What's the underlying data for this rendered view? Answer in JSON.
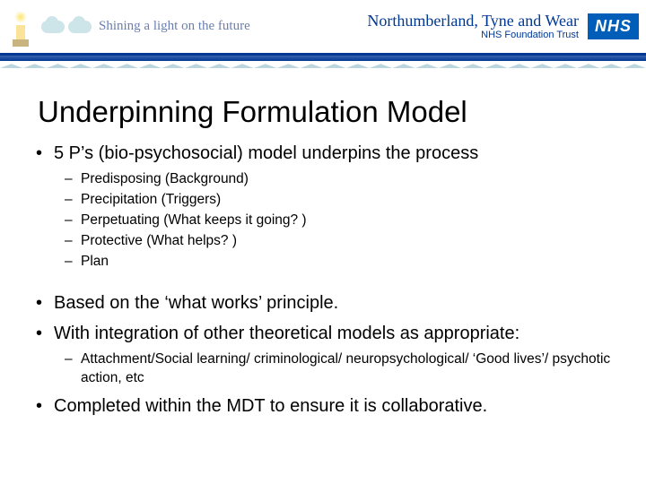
{
  "header": {
    "tagline": "Shining a light on the future",
    "trust_line1": "Northumberland, Tyne and Wear",
    "trust_line2": "NHS Foundation Trust",
    "nhs": "NHS"
  },
  "title": "Underpinning Formulation Model",
  "bullets": [
    {
      "text": "5 P’s (bio-psychosocial) model underpins the process",
      "sub": [
        "Predisposing (Background)",
        "Precipitation (Triggers)",
        "Perpetuating (What keeps it going? )",
        "Protective (What helps? )",
        "Plan"
      ]
    },
    {
      "text": "Based on the ‘what works’ principle."
    },
    {
      "text": "With integration of other theoretical models as appropriate:",
      "sub": [
        "Attachment/Social learning/ criminological/ neuropsychological/ ‘Good lives’/ psychotic action, etc"
      ]
    },
    {
      "text": "Completed within the MDT to ensure it is collaborative."
    }
  ]
}
